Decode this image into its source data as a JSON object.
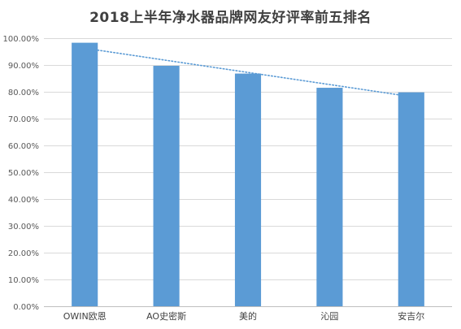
{
  "chart_data": {
    "type": "bar",
    "title": "2018上半年净水器品牌网友好评率前五排名",
    "xlabel": "",
    "ylabel": "",
    "categories": [
      "OWIN欧恩",
      "AO史密斯",
      "美的",
      "沁园",
      "安吉尔"
    ],
    "values": [
      98.3,
      89.7,
      86.8,
      81.5,
      79.8
    ],
    "ylim": [
      0,
      100
    ],
    "yticks": [
      "0.00%",
      "10.00%",
      "20.00%",
      "30.00%",
      "40.00%",
      "50.00%",
      "60.00%",
      "70.00%",
      "80.00%",
      "90.00%",
      "100.00%"
    ],
    "grid": true,
    "trendline": {
      "type": "linear",
      "style": "dotted"
    },
    "legend": "none",
    "colors": {
      "bar": "#5B9BD5",
      "trend": "#5B9BD5",
      "grid": "#D9D9D9",
      "axis": "#BFBFBF"
    }
  }
}
